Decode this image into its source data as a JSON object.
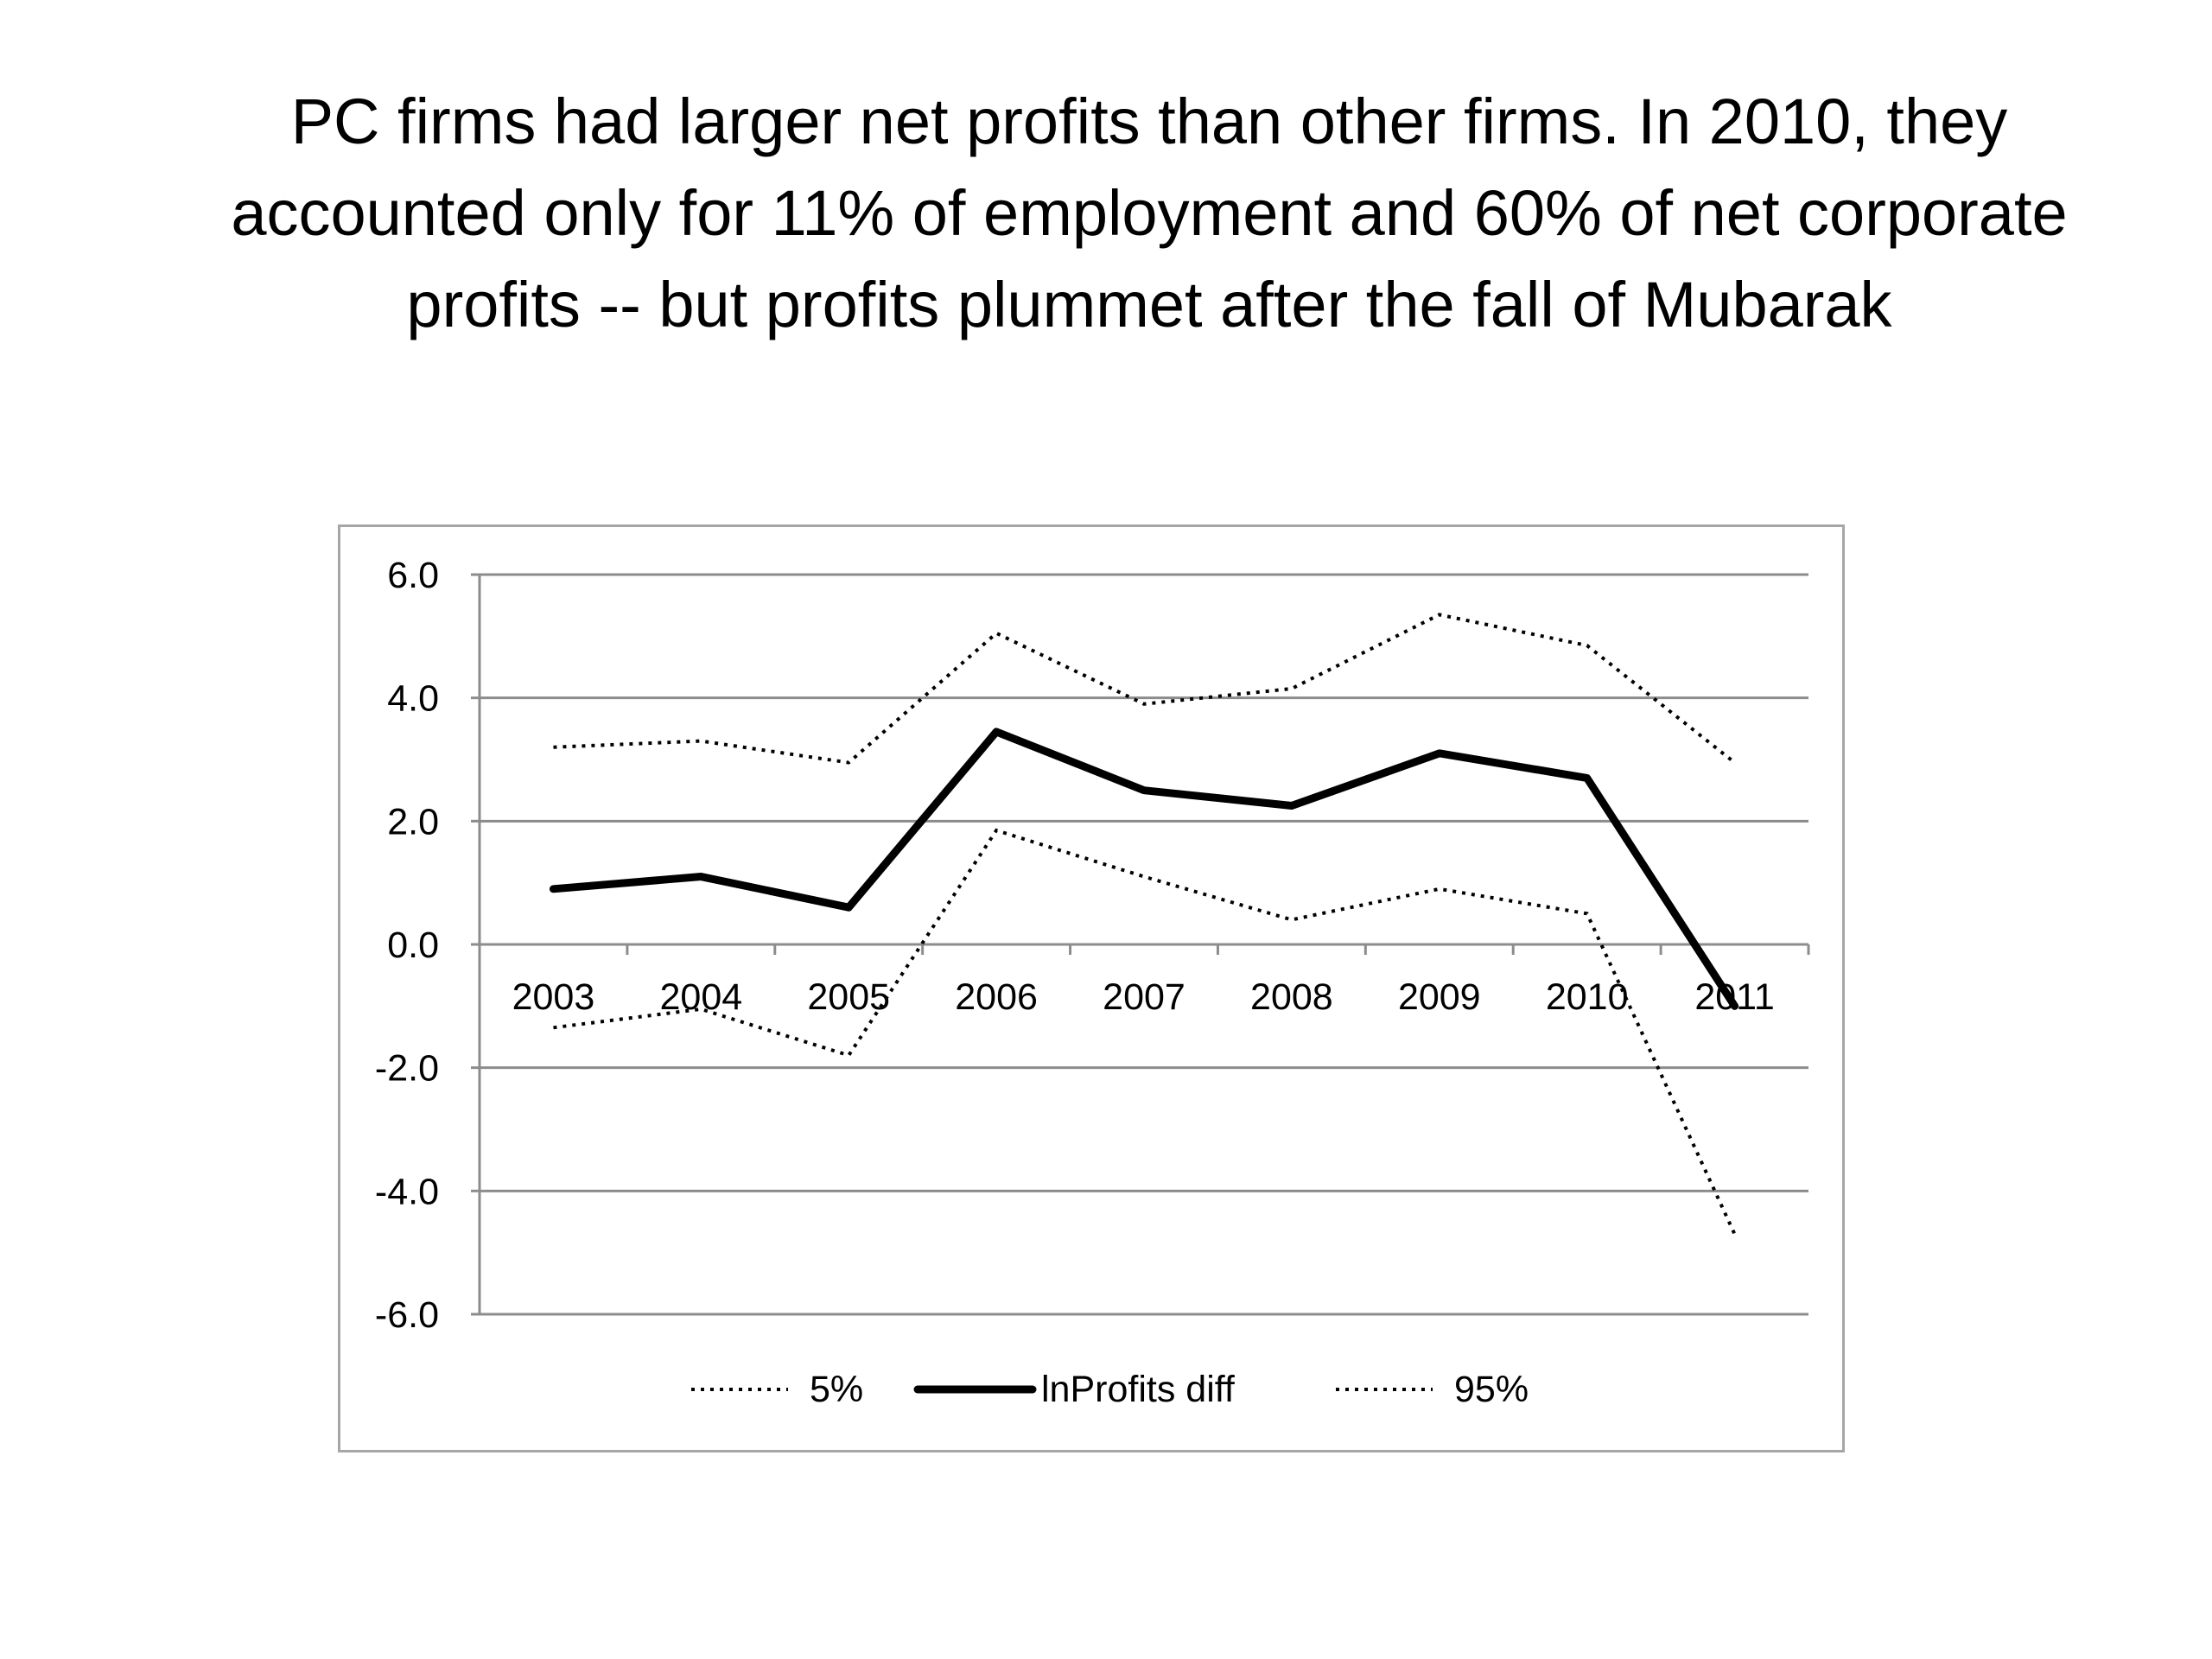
{
  "title_lines": [
    "PC firms had larger net profits than other firms. In 2010, they",
    "accounted only for 11% of employment and 60% of net corporate",
    "profits -- but profits plummet after the fall of Mubarak"
  ],
  "chart_data": {
    "type": "line",
    "categories": [
      "2003",
      "2004",
      "2005",
      "2006",
      "2007",
      "2008",
      "2009",
      "2010",
      "2011"
    ],
    "series": [
      {
        "name": "5%",
        "style": "dotted",
        "color": "#000000",
        "values": [
          -1.35,
          -1.05,
          -1.8,
          1.85,
          1.1,
          0.4,
          0.9,
          0.5,
          -4.7
        ]
      },
      {
        "name": "lnProfits diff",
        "style": "solid-thick",
        "color": "#000000",
        "values": [
          0.9,
          1.1,
          0.6,
          3.45,
          2.5,
          2.25,
          3.1,
          2.7,
          -1.0
        ]
      },
      {
        "name": "95%",
        "style": "dotted",
        "color": "#000000",
        "values": [
          3.2,
          3.3,
          2.95,
          5.05,
          3.9,
          4.15,
          5.35,
          4.85,
          2.95
        ]
      }
    ],
    "yticks": [
      "6.0",
      "4.0",
      "2.0",
      "0.0",
      "-2.0",
      "-4.0",
      "-6.0"
    ],
    "ylim": [
      -6,
      6
    ],
    "grid": true,
    "legend": "bottom",
    "legend_entries": [
      "5%",
      "lnProfits diff",
      "95%"
    ],
    "xlabel": "",
    "ylabel": ""
  }
}
